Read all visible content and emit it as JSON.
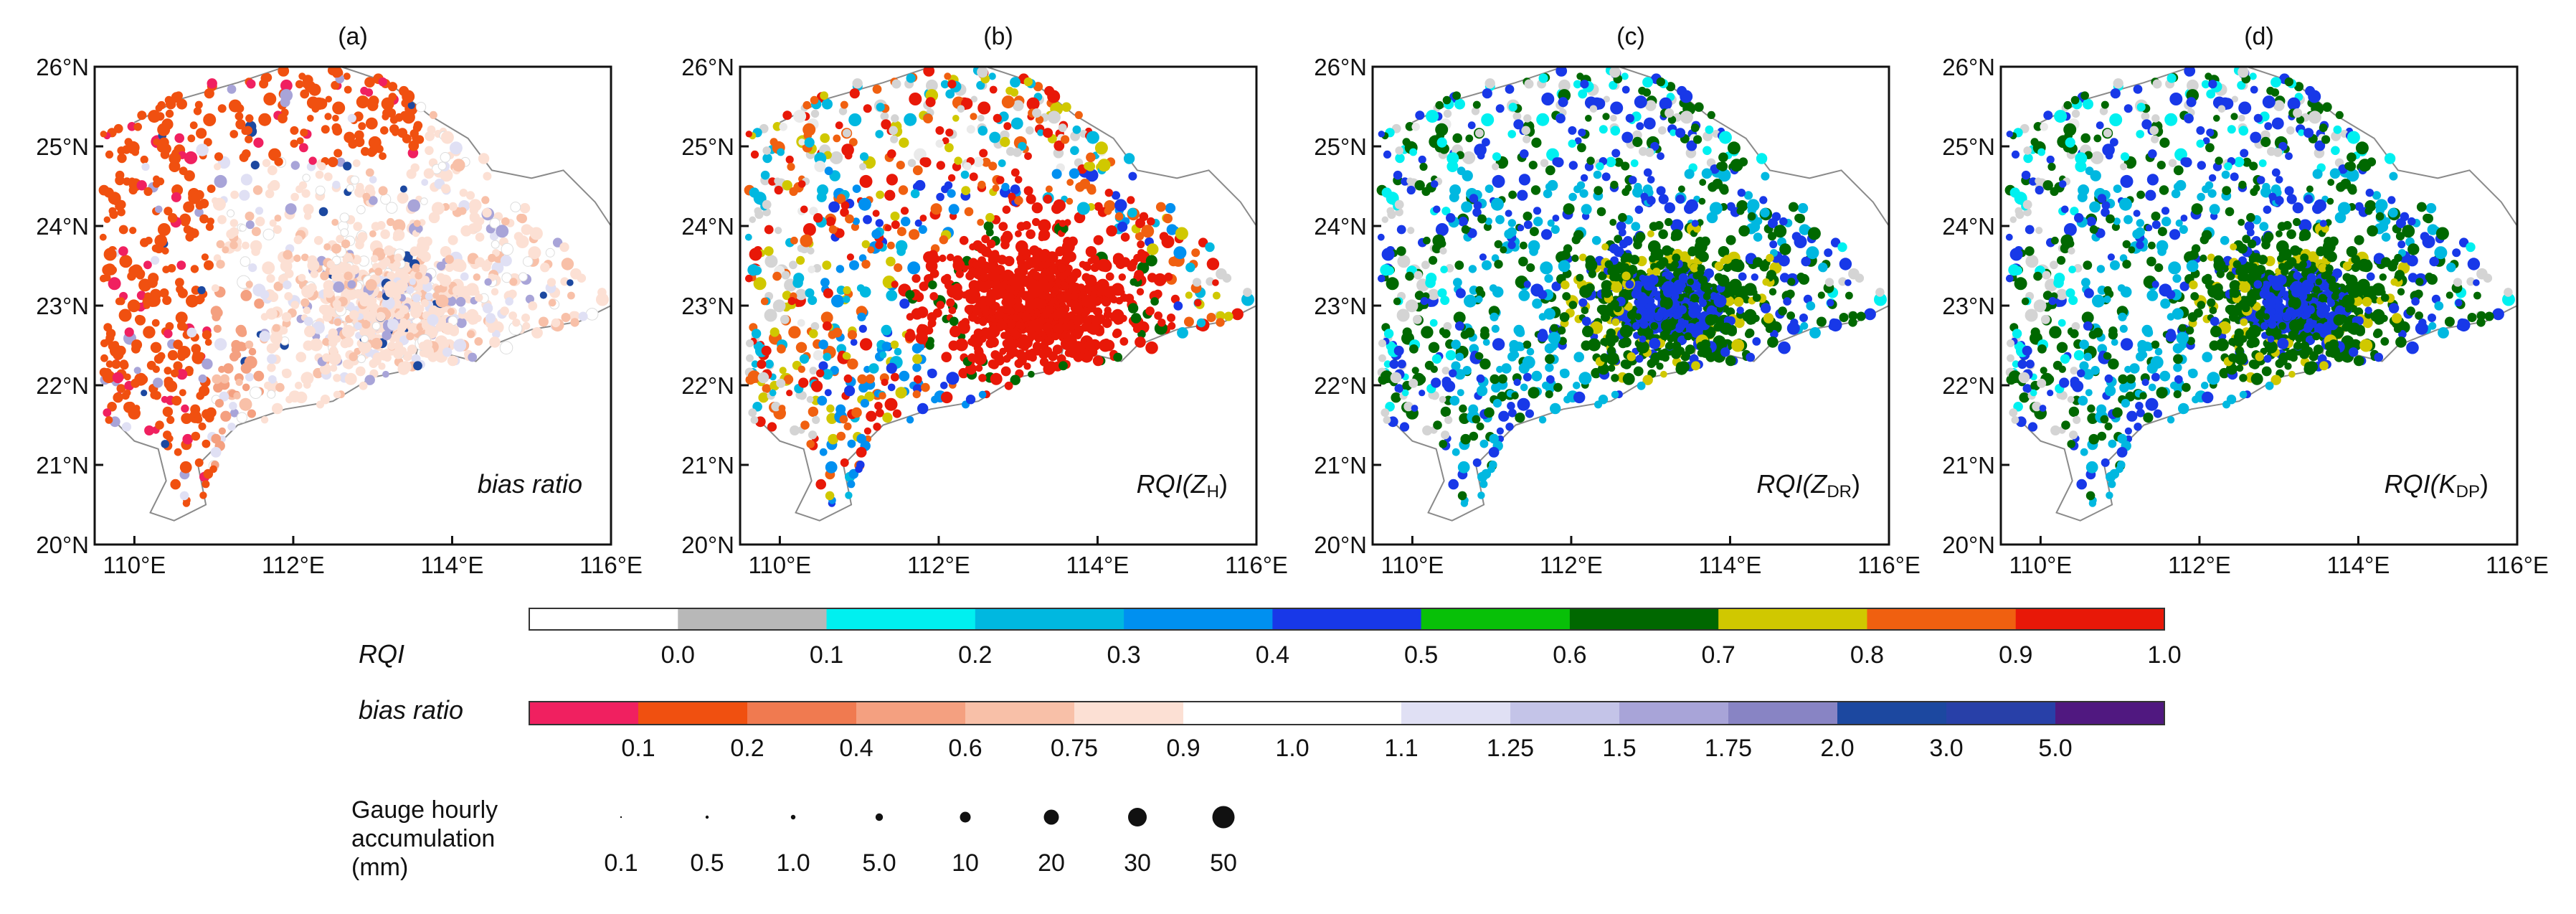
{
  "chart_data": {
    "type": "scatter",
    "description_axes": {
      "x_ticks": [
        "110°E",
        "112°E",
        "114°E",
        "116°E"
      ],
      "y_ticks": [
        "20°N",
        "21°N",
        "22°N",
        "23°N",
        "24°N",
        "25°N",
        "26°N"
      ],
      "x_range": [
        109.5,
        116
      ],
      "y_range": [
        20,
        26
      ]
    },
    "panels": [
      {
        "letter": "(a)",
        "label_main": "bias ratio",
        "label_sub": "",
        "label_tail": "",
        "variable": "bias"
      },
      {
        "letter": "(b)",
        "label_main": "RQI(Z",
        "label_sub": "H",
        "label_tail": ")",
        "variable": "rqi_zh"
      },
      {
        "letter": "(c)",
        "label_main": "RQI(Z",
        "label_sub": "DR",
        "label_tail": ")",
        "variable": "rqi_zdr"
      },
      {
        "letter": "(d)",
        "label_main": "RQI(K",
        "label_sub": "DP",
        "label_tail": ")",
        "variable": "rqi_kdp"
      }
    ],
    "rqi_colorbar": {
      "title": "RQI",
      "bounds": [
        0.0,
        0.1,
        0.2,
        0.3,
        0.4,
        0.5,
        0.6,
        0.7,
        0.8,
        0.9,
        1.0
      ],
      "labels": [
        "0.0",
        "0.1",
        "0.2",
        "0.3",
        "0.4",
        "0.5",
        "0.6",
        "0.7",
        "0.8",
        "0.9",
        "1.0"
      ],
      "colors": [
        "#ffffff",
        "#b8b8b8",
        "#00f0f0",
        "#00b8e0",
        "#0090f0",
        "#1838e8",
        "#08c008",
        "#006800",
        "#d0c800",
        "#f06010",
        "#e81808"
      ]
    },
    "bias_colorbar": {
      "title": "bias ratio",
      "labels": [
        "0.1",
        "0.2",
        "0.4",
        "0.6",
        "0.75",
        "0.9",
        "1.0",
        "1.1",
        "1.25",
        "1.5",
        "1.75",
        "2.0",
        "3.0",
        "5.0"
      ],
      "colors": [
        "#f02060",
        "#f05010",
        "#f07a50",
        "#f4a080",
        "#f8c0a8",
        "#fce0d4",
        "#ffffff",
        "#ffffff",
        "#e0e0f4",
        "#c4c4e8",
        "#a8a4d8",
        "#8884c4",
        "#1c48a0",
        "#2840a8",
        "#501880"
      ]
    },
    "size_legend": {
      "title": [
        "Gauge hourly",
        "accumulation",
        "(mm)"
      ],
      "values": [
        "0.1",
        "0.5",
        "1.0",
        "5.0",
        "10",
        "20",
        "30",
        "50"
      ],
      "radii": [
        1.2,
        2.2,
        3.2,
        5.2,
        7.5,
        10.5,
        13,
        15.5
      ]
    }
  }
}
